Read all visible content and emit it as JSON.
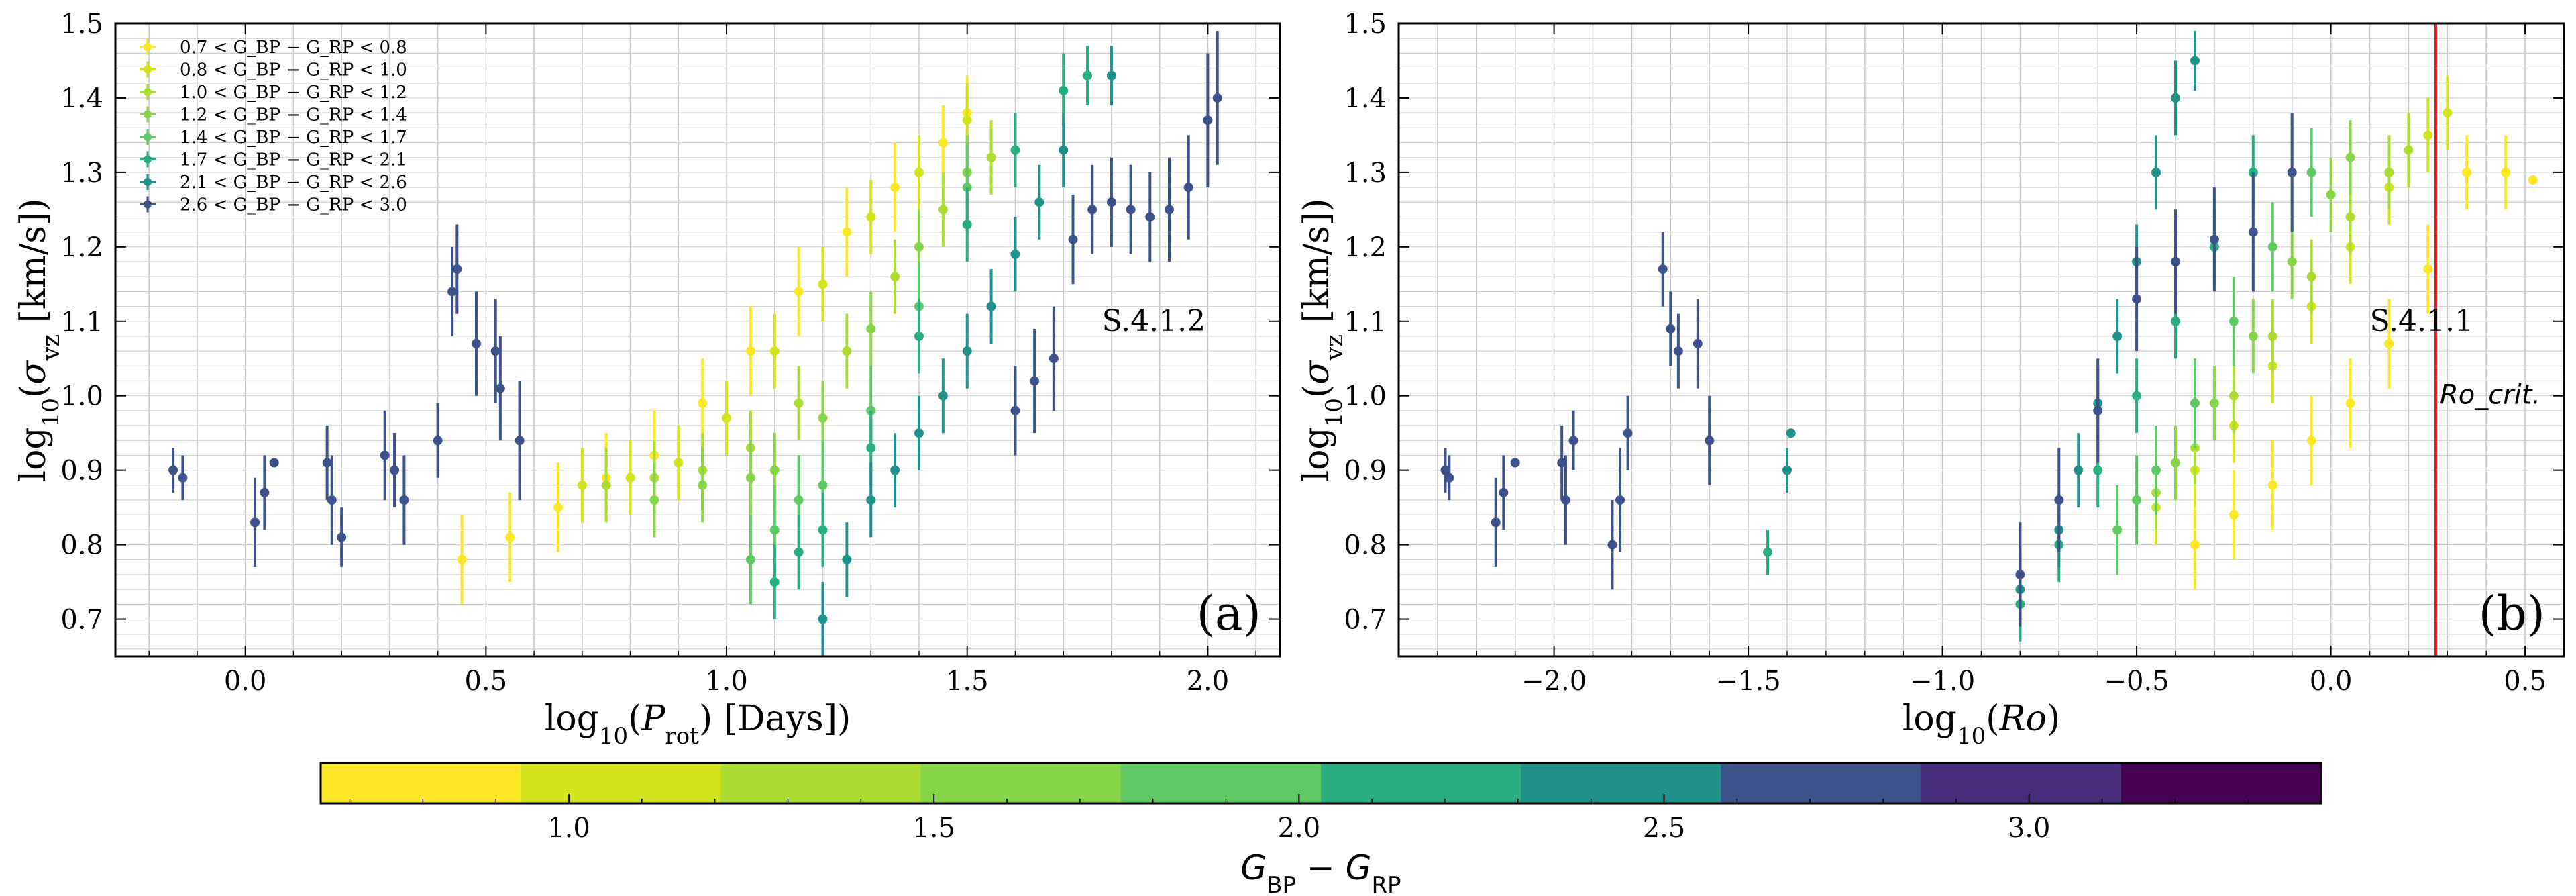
{
  "figure": {
    "colorbar_label": "G_BP − G_RP",
    "colorbar_label_main": "G",
    "colorbar_label_sub1": "BP",
    "colorbar_label_mid": " − G",
    "colorbar_label_sub2": "RP",
    "colorbar_ticks": [
      "1.0",
      "1.5",
      "2.0",
      "2.5",
      "3.0"
    ],
    "colorbar_range": [
      0.66,
      3.4
    ],
    "colors": {
      "bin1": "#fde725",
      "bin2": "#d2e21b",
      "bin3": "#addc30",
      "bin4": "#86d549",
      "bin5": "#5ec962",
      "bin6": "#28ae80",
      "bin7": "#21918c",
      "bin8": "#3b528b",
      "cb9": "#472d7b",
      "cb10": "#440154",
      "critline": "#e41a1c"
    }
  },
  "chart_data": [
    {
      "type": "scatter",
      "panel_label": "(a)",
      "annotation": "S.4.1.2",
      "xlabel": "log10(P_rot) [Days])",
      "ylabel": "log10(σ_vz [km/s])",
      "xlim": [
        -0.27,
        2.15
      ],
      "ylim": [
        0.65,
        1.5
      ],
      "xticks": [
        "0.0",
        "0.5",
        "1.0",
        "1.5",
        "2.0"
      ],
      "yticks": [
        "0.7",
        "0.8",
        "0.9",
        "1.0",
        "1.1",
        "1.2",
        "1.3",
        "1.4",
        "1.5"
      ],
      "legend": [
        "0.7 < G_BP − G_RP < 0.8",
        "0.8 < G_BP − G_RP < 1.0",
        "1.0 < G_BP − G_RP < 1.2",
        "1.2 < G_BP − G_RP < 1.4",
        "1.4 < G_BP − G_RP < 1.7",
        "1.7 < G_BP − G_RP < 2.1",
        "2.1 < G_BP − G_RP < 2.6",
        "2.6 < G_BP − G_RP < 3.0"
      ],
      "series": [
        {
          "name": "0.7 < G_BP − G_RP < 0.8",
          "color": "#fde725",
          "x": [
            0.45,
            0.55,
            0.65,
            0.75,
            0.85,
            0.95,
            1.05,
            1.15,
            1.25,
            1.35,
            1.45,
            1.5
          ],
          "y": [
            0.78,
            0.81,
            0.85,
            0.89,
            0.92,
            0.99,
            1.06,
            1.14,
            1.22,
            1.28,
            1.34,
            1.38
          ],
          "err": [
            0.06,
            0.06,
            0.06,
            0.06,
            0.06,
            0.06,
            0.06,
            0.06,
            0.06,
            0.06,
            0.05,
            0.05
          ]
        },
        {
          "name": "0.8 < G_BP − G_RP < 1.0",
          "color": "#d2e21b",
          "x": [
            0.7,
            0.8,
            0.9,
            1.0,
            1.1,
            1.2,
            1.3,
            1.4,
            1.5
          ],
          "y": [
            0.88,
            0.89,
            0.91,
            0.97,
            1.06,
            1.15,
            1.24,
            1.3,
            1.37
          ],
          "err": [
            0.05,
            0.05,
            0.05,
            0.05,
            0.05,
            0.05,
            0.05,
            0.05,
            0.05
          ]
        },
        {
          "name": "1.0 < G_BP − G_RP < 1.2",
          "color": "#addc30",
          "x": [
            0.75,
            0.85,
            0.95,
            1.05,
            1.15,
            1.25,
            1.35,
            1.45,
            1.55
          ],
          "y": [
            0.88,
            0.89,
            0.9,
            0.93,
            0.99,
            1.06,
            1.16,
            1.25,
            1.32
          ],
          "err": [
            0.05,
            0.05,
            0.05,
            0.05,
            0.05,
            0.05,
            0.05,
            0.05,
            0.05
          ]
        },
        {
          "name": "1.2 < G_BP − G_RP < 1.4",
          "color": "#86d549",
          "x": [
            0.85,
            0.95,
            1.05,
            1.1,
            1.2,
            1.3,
            1.4,
            1.5
          ],
          "y": [
            0.86,
            0.88,
            0.89,
            0.9,
            0.97,
            1.09,
            1.2,
            1.3
          ],
          "err": [
            0.05,
            0.05,
            0.05,
            0.05,
            0.05,
            0.05,
            0.05,
            0.05
          ]
        },
        {
          "name": "1.4 < G_BP − G_RP < 1.7",
          "color": "#5ec962",
          "x": [
            1.05,
            1.1,
            1.15,
            1.2,
            1.3,
            1.4,
            1.5
          ],
          "y": [
            0.78,
            0.82,
            0.86,
            0.88,
            0.98,
            1.12,
            1.28
          ],
          "err": [
            0.06,
            0.06,
            0.06,
            0.06,
            0.06,
            0.06,
            0.06
          ]
        },
        {
          "name": "1.7 < G_BP − G_RP < 2.1",
          "color": "#28ae80",
          "x": [
            1.1,
            1.15,
            1.2,
            1.3,
            1.4,
            1.5,
            1.6,
            1.7,
            1.75
          ],
          "y": [
            0.75,
            0.79,
            0.82,
            0.93,
            1.08,
            1.23,
            1.33,
            1.41,
            1.43
          ],
          "err": [
            0.05,
            0.05,
            0.05,
            0.05,
            0.05,
            0.05,
            0.05,
            0.05,
            0.04
          ]
        },
        {
          "name": "2.1 < G_BP − G_RP < 2.6",
          "color": "#21918c",
          "x": [
            1.2,
            1.25,
            1.3,
            1.35,
            1.4,
            1.45,
            1.5,
            1.55,
            1.6,
            1.65,
            1.7,
            1.8
          ],
          "y": [
            0.7,
            0.78,
            0.86,
            0.9,
            0.95,
            1.0,
            1.06,
            1.12,
            1.19,
            1.26,
            1.33,
            1.43
          ],
          "err": [
            0.05,
            0.05,
            0.05,
            0.05,
            0.05,
            0.05,
            0.05,
            0.05,
            0.05,
            0.05,
            0.05,
            0.04
          ]
        },
        {
          "name": "2.6 < G_BP − G_RP < 3.0",
          "color": "#3b528b",
          "x": [
            -0.15,
            -0.13,
            0.02,
            0.04,
            0.06,
            0.17,
            0.18,
            0.2,
            0.29,
            0.31,
            0.33,
            0.4,
            0.43,
            0.44,
            0.48,
            0.52,
            0.53,
            0.57,
            1.6,
            1.64,
            1.68,
            1.72,
            1.76,
            1.8,
            1.84,
            1.88,
            1.92,
            1.96,
            2.0,
            2.02
          ],
          "y": [
            0.9,
            0.89,
            0.83,
            0.87,
            0.91,
            0.91,
            0.86,
            0.81,
            0.92,
            0.9,
            0.86,
            0.94,
            1.14,
            1.17,
            1.07,
            1.06,
            1.01,
            0.94,
            0.98,
            1.02,
            1.05,
            1.21,
            1.25,
            1.26,
            1.25,
            1.24,
            1.25,
            1.28,
            1.37,
            1.4
          ],
          "err": [
            0.03,
            0.03,
            0.06,
            0.05,
            0,
            0.05,
            0.06,
            0.04,
            0.06,
            0.05,
            0.06,
            0.05,
            0.06,
            0.06,
            0.07,
            0.07,
            0.07,
            0.08,
            0.06,
            0.07,
            0.07,
            0.06,
            0.06,
            0.06,
            0.06,
            0.06,
            0.07,
            0.07,
            0.09,
            0.09
          ]
        }
      ]
    },
    {
      "type": "scatter",
      "panel_label": "(b)",
      "annotation": "S.4.1.1",
      "critical_line_label": "Ro_crit.",
      "critical_x": 0.27,
      "xlabel": "log10(Ro)",
      "ylabel": "log10(σ_vz [km/s])",
      "xlim": [
        -2.4,
        0.6
      ],
      "ylim": [
        0.65,
        1.5
      ],
      "xticks": [
        "−2.0",
        "−1.5",
        "−1.0",
        "−0.5",
        "0.0",
        "0.5"
      ],
      "yticks": [
        "0.7",
        "0.8",
        "0.9",
        "1.0",
        "1.1",
        "1.2",
        "1.3",
        "1.4",
        "1.5"
      ],
      "series": [
        {
          "name": "0.7 < G_BP − G_RP < 0.8",
          "color": "#fde725",
          "x": [
            -0.35,
            -0.25,
            -0.15,
            -0.05,
            0.05,
            0.15,
            0.25,
            0.35,
            0.45,
            0.52
          ],
          "y": [
            0.8,
            0.84,
            0.88,
            0.94,
            0.99,
            1.07,
            1.17,
            1.3,
            1.3,
            1.29
          ],
          "err": [
            0.06,
            0.06,
            0.06,
            0.06,
            0.06,
            0.06,
            0.06,
            0.05,
            0.05,
            0
          ]
        },
        {
          "name": "0.8 < G_BP − G_RP < 1.0",
          "color": "#d2e21b",
          "x": [
            -0.45,
            -0.35,
            -0.25,
            -0.15,
            -0.05,
            0.05,
            0.15,
            0.25,
            0.3
          ],
          "y": [
            0.85,
            0.9,
            0.96,
            1.04,
            1.12,
            1.2,
            1.28,
            1.35,
            1.38
          ],
          "err": [
            0.05,
            0.05,
            0.05,
            0.05,
            0.05,
            0.05,
            0.05,
            0.05,
            0.05
          ]
        },
        {
          "name": "1.0 < G_BP − G_RP < 1.2",
          "color": "#addc30",
          "x": [
            -0.45,
            -0.35,
            -0.25,
            -0.15,
            -0.05,
            0.05,
            0.15,
            0.2
          ],
          "y": [
            0.87,
            0.93,
            1.0,
            1.08,
            1.16,
            1.24,
            1.3,
            1.33
          ],
          "err": [
            0.05,
            0.05,
            0.05,
            0.05,
            0.05,
            0.05,
            0.05,
            0.05
          ]
        },
        {
          "name": "1.2 < G_BP − G_RP < 1.4",
          "color": "#86d549",
          "x": [
            -0.5,
            -0.4,
            -0.3,
            -0.2,
            -0.1,
            0.0,
            0.05
          ],
          "y": [
            0.86,
            0.91,
            0.99,
            1.08,
            1.18,
            1.27,
            1.32
          ],
          "err": [
            0.05,
            0.05,
            0.05,
            0.05,
            0.05,
            0.05,
            0.05
          ]
        },
        {
          "name": "1.4 < G_BP − G_RP < 1.7",
          "color": "#5ec962",
          "x": [
            -0.55,
            -0.5,
            -0.45,
            -0.35,
            -0.25,
            -0.15,
            -0.05
          ],
          "y": [
            0.82,
            0.86,
            0.9,
            0.99,
            1.1,
            1.2,
            1.3
          ],
          "err": [
            0.06,
            0.06,
            0.06,
            0.06,
            0.06,
            0.06,
            0.06
          ]
        },
        {
          "name": "1.7 < G_BP − G_RP < 2.1",
          "color": "#28ae80",
          "x": [
            -0.8,
            -0.7,
            -0.6,
            -0.5,
            -0.4,
            -0.3,
            -0.2,
            -1.45
          ],
          "y": [
            0.72,
            0.8,
            0.9,
            1.0,
            1.1,
            1.2,
            1.3,
            0.79
          ],
          "err": [
            0.05,
            0.05,
            0.05,
            0.05,
            0.05,
            0.05,
            0.05,
            0.03
          ]
        },
        {
          "name": "2.1 < G_BP − G_RP < 2.6",
          "color": "#21918c",
          "x": [
            -0.8,
            -0.7,
            -0.65,
            -0.6,
            -0.55,
            -0.5,
            -0.45,
            -0.4,
            -0.35,
            -1.4,
            -1.39
          ],
          "y": [
            0.74,
            0.82,
            0.9,
            0.99,
            1.08,
            1.18,
            1.3,
            1.4,
            1.45,
            0.9,
            0.95
          ],
          "err": [
            0.05,
            0.05,
            0.05,
            0.05,
            0.05,
            0.05,
            0.05,
            0.05,
            0.04,
            0.03,
            0
          ]
        },
        {
          "name": "2.6 < G_BP − G_RP < 3.0",
          "color": "#3b528b",
          "x": [
            -2.28,
            -2.27,
            -2.15,
            -2.13,
            -2.1,
            -1.98,
            -1.97,
            -1.95,
            -1.85,
            -1.83,
            -1.81,
            -1.72,
            -1.7,
            -1.68,
            -1.63,
            -1.6,
            -0.8,
            -0.7,
            -0.6,
            -0.5,
            -0.4,
            -0.3,
            -0.2,
            -0.1
          ],
          "y": [
            0.9,
            0.89,
            0.83,
            0.87,
            0.91,
            0.91,
            0.86,
            0.94,
            0.8,
            0.86,
            0.95,
            1.17,
            1.09,
            1.06,
            1.07,
            0.94,
            0.76,
            0.86,
            0.98,
            1.13,
            1.18,
            1.21,
            1.22,
            1.3
          ],
          "err": [
            0.03,
            0.03,
            0.06,
            0.05,
            0,
            0.05,
            0.06,
            0.04,
            0.06,
            0.07,
            0.05,
            0.05,
            0.05,
            0.05,
            0.06,
            0.06,
            0.07,
            0.07,
            0.07,
            0.07,
            0.07,
            0.07,
            0.08,
            0.08
          ]
        }
      ]
    }
  ]
}
